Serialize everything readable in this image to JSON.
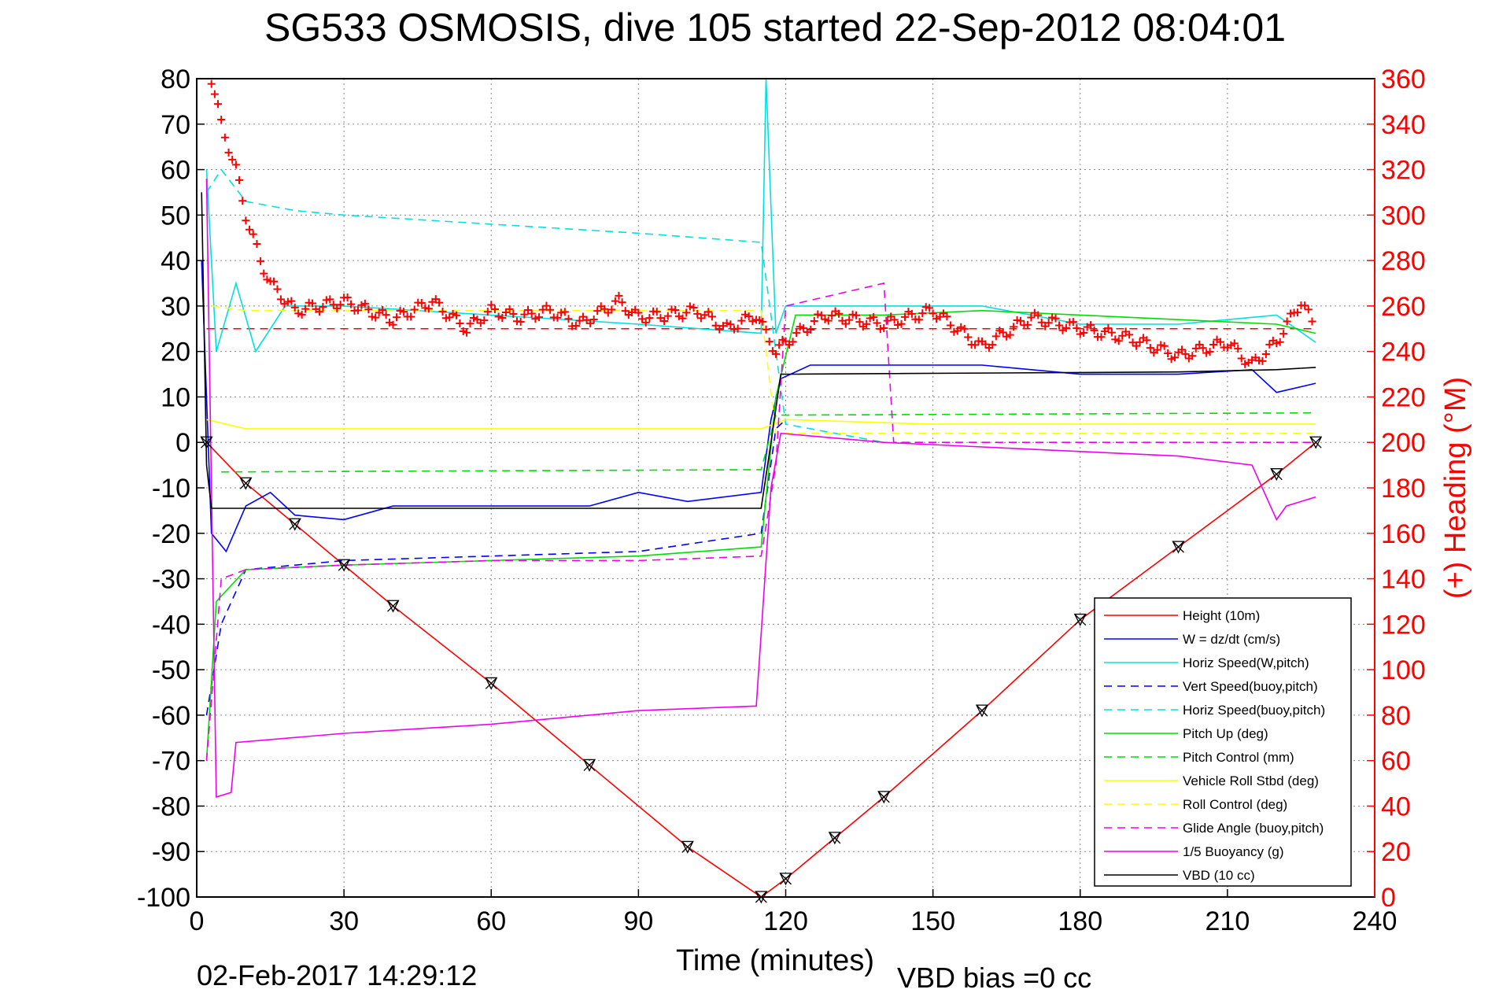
{
  "chart_data": {
    "type": "line",
    "title": "SG533 OSMOSIS, dive 105 started 22-Sep-2012 08:04:01",
    "xlabel": "Time (minutes)",
    "ylabel_right": "(+) Heading (°M)",
    "footer_timestamp": "02-Feb-2017 14:29:12",
    "footer_note": "VBD bias =0 cc",
    "xlim": [
      0,
      240
    ],
    "ylim_left": [
      -100,
      80
    ],
    "ylim_right": [
      0,
      360
    ],
    "x_ticks": [
      "0",
      "30",
      "60",
      "90",
      "120",
      "150",
      "180",
      "210",
      "240"
    ],
    "y_ticks_left": [
      "80",
      "70",
      "60",
      "50",
      "40",
      "30",
      "20",
      "10",
      "0",
      "-10",
      "-20",
      "-30",
      "-40",
      "-50",
      "-60",
      "-70",
      "-80",
      "-90",
      "-100"
    ],
    "y_ticks_right": [
      "360",
      "340",
      "320",
      "300",
      "280",
      "260",
      "240",
      "220",
      "200",
      "180",
      "160",
      "140",
      "120",
      "100",
      "80",
      "60",
      "40",
      "20",
      "0"
    ],
    "grid": true,
    "legend_position": "bottom-right",
    "colors": {
      "axis_right": "#ff0000",
      "grid": "#888888"
    },
    "series": [
      {
        "name": "Height (10m)",
        "color": "#ff0000",
        "style": "solid",
        "x": [
          2,
          10,
          20,
          30,
          40,
          60,
          80,
          100,
          115,
          120,
          130,
          140,
          160,
          180,
          200,
          220,
          228
        ],
        "y": [
          0,
          -9,
          -18,
          -27,
          -36,
          -53,
          -71,
          -89,
          -100,
          -96,
          -87,
          -78,
          -59,
          -39,
          -23,
          -7,
          0
        ]
      },
      {
        "name": "W = dz/dt (cm/s)",
        "color": "#0000ff",
        "style": "solid",
        "x": [
          1,
          3,
          6,
          10,
          15,
          20,
          30,
          40,
          60,
          80,
          90,
          100,
          115,
          117,
          119,
          125,
          140,
          160,
          180,
          200,
          215,
          220,
          228
        ],
        "y": [
          40,
          -20,
          -24,
          -14,
          -11,
          -16,
          -17,
          -14,
          -14,
          -14,
          -11,
          -13,
          -11,
          5,
          14,
          17,
          17,
          17,
          15,
          15,
          16,
          11,
          13
        ]
      },
      {
        "name": "Horiz Speed(W,pitch)",
        "color": "#00e0e0",
        "style": "solid",
        "x": [
          2,
          4,
          8,
          12,
          18,
          30,
          60,
          90,
          115,
          116,
          118,
          120,
          140,
          160,
          180,
          200,
          220,
          228
        ],
        "y": [
          60,
          20,
          35,
          20,
          30,
          30,
          28,
          26,
          24,
          80,
          24,
          30,
          30,
          30,
          26,
          26,
          28,
          22
        ]
      },
      {
        "name": "Vert Speed(buoy,pitch)",
        "color": "#0000ff",
        "style": "dashed",
        "x": [
          2,
          5,
          10,
          30,
          60,
          90,
          115,
          118,
          120
        ],
        "y": [
          -60,
          -40,
          -28,
          -26,
          -25,
          -24,
          -20,
          3,
          5
        ]
      },
      {
        "name": "Horiz Speed(buoy,pitch)",
        "color": "#00e0e0",
        "style": "dashed",
        "x": [
          2,
          5,
          10,
          20,
          30,
          60,
          90,
          115,
          120,
          140
        ],
        "y": [
          55,
          60,
          53,
          51,
          50,
          48,
          46,
          44,
          4,
          0
        ]
      },
      {
        "name": "Pitch Up (deg)",
        "color": "#00dd00",
        "style": "solid",
        "x": [
          2,
          4,
          10,
          30,
          60,
          90,
          115,
          118,
          122,
          140,
          160,
          180,
          200,
          220,
          228
        ],
        "y": [
          -70,
          -35,
          -28,
          -27,
          -26,
          -25,
          -23,
          10,
          28,
          28,
          29,
          28,
          27,
          26,
          24
        ]
      },
      {
        "name": "Pitch Control (mm)",
        "color": "#00dd00",
        "style": "dashed",
        "x": [
          5,
          115,
          118,
          228
        ],
        "y": [
          -6.5,
          -6,
          6,
          6.5
        ]
      },
      {
        "name": "Vehicle Roll Stbd (deg)",
        "color": "#ffff00",
        "style": "solid",
        "x": [
          2,
          10,
          20,
          30,
          60,
          90,
          115,
          120,
          150,
          180,
          210,
          228
        ],
        "y": [
          5,
          3,
          3,
          3,
          3,
          3,
          3,
          5,
          4,
          4,
          4,
          4
        ]
      },
      {
        "name": "Roll Control (deg)",
        "color": "#ffff00",
        "style": "dashed",
        "x": [
          3,
          10,
          115,
          118,
          228
        ],
        "y": [
          30,
          29,
          29,
          2,
          2
        ]
      },
      {
        "name": "Glide Angle (buoy,pitch)",
        "color": "#ee00ee",
        "style": "dashed",
        "x": [
          2,
          5,
          10,
          30,
          60,
          90,
          115,
          118,
          120,
          140,
          142,
          220,
          228
        ],
        "y": [
          -70,
          -30,
          -28,
          -27,
          -26,
          -26,
          -25,
          -5,
          30,
          35,
          0,
          0,
          0
        ]
      },
      {
        "name": "1/5 Buoyancy (g)",
        "color": "#ee00ee",
        "style": "solid",
        "x": [
          2,
          4,
          7,
          8,
          30,
          60,
          90,
          114,
          117,
          119,
          140,
          160,
          180,
          200,
          215,
          220,
          222,
          228
        ],
        "y": [
          58,
          -78,
          -77,
          -66,
          -64,
          -62,
          -59,
          -58,
          -10,
          2,
          0,
          -1,
          -2,
          -3,
          -5,
          -17,
          -14,
          -12
        ]
      },
      {
        "name": "VBD (10 cc)",
        "color": "#000000",
        "style": "solid",
        "x": [
          1,
          2,
          3,
          115,
          117,
          119,
          200,
          220,
          228
        ],
        "y": [
          55,
          -5,
          -14.5,
          -14.5,
          0,
          15,
          15.5,
          16,
          16.5
        ]
      }
    ],
    "heading_series": {
      "color": "#ff0000",
      "marker": "+",
      "axis": "right",
      "x": [
        3,
        5,
        8,
        10,
        13,
        15,
        20,
        30,
        40,
        48,
        55,
        60,
        66,
        72,
        78,
        86,
        90,
        96,
        102,
        108,
        114,
        118,
        120,
        128,
        140,
        150,
        160,
        170,
        180,
        190,
        200,
        210,
        215,
        220,
        225,
        228
      ],
      "y": [
        360,
        340,
        320,
        300,
        280,
        270,
        258,
        262,
        254,
        262,
        250,
        258,
        255,
        258,
        252,
        262,
        255,
        256,
        258,
        250,
        256,
        240,
        244,
        256,
        252,
        258,
        242,
        255,
        250,
        246,
        238,
        244,
        234,
        244,
        262,
        250
      ]
    },
    "reference_line_heading": 250
  }
}
